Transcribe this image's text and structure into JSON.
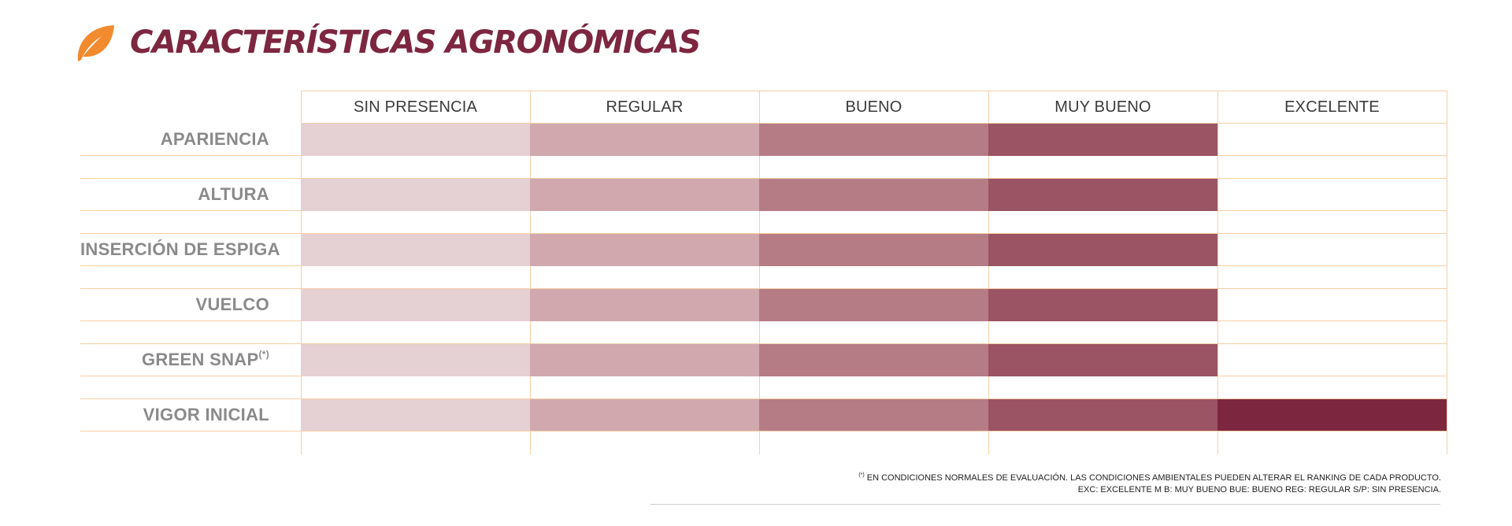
{
  "header": {
    "title": "CARACTERÍSTICAS AGRONÓMICAS",
    "icon": "leaf-icon",
    "icon_color": "#f28a2e"
  },
  "table": {
    "columns": [
      "SIN PRESENCIA",
      "REGULAR",
      "BUENO",
      "MUY BUENO",
      "EXCELENTE"
    ],
    "scale_colors": [
      "#e5d0d3",
      "#d0a8ae",
      "#b57c86",
      "#9b5464",
      "#7d2640"
    ],
    "rows": [
      {
        "label": "APARIENCIA",
        "note_mark": "",
        "rating_level": 4,
        "rating": "MUY BUENO"
      },
      {
        "label": "ALTURA",
        "note_mark": "",
        "rating_level": 4,
        "rating": "MUY BUENO"
      },
      {
        "label": "INSERCIÓN DE ESPIGA",
        "note_mark": "",
        "rating_level": 4,
        "rating": "MUY BUENO"
      },
      {
        "label": "VUELCO",
        "note_mark": "",
        "rating_level": 4,
        "rating": "MUY BUENO"
      },
      {
        "label": "GREEN SNAP",
        "note_mark": "(*)",
        "rating_level": 4,
        "rating": "MUY BUENO"
      },
      {
        "label": "VIGOR INICIAL",
        "note_mark": "",
        "rating_level": 5,
        "rating": "EXCELENTE"
      }
    ]
  },
  "footnote": {
    "mark": "(*)",
    "line1": " EN CONDICIONES NORMALES DE EVALUACIÓN. LAS CONDICIONES AMBIENTALES PUEDEN ALTERAR EL RANKING DE CADA PRODUCTO.",
    "line2": "EXC: EXCELENTE M B: MUY BUENO BUE: BUENO REG: REGULAR S/P: SIN PRESENCIA."
  }
}
